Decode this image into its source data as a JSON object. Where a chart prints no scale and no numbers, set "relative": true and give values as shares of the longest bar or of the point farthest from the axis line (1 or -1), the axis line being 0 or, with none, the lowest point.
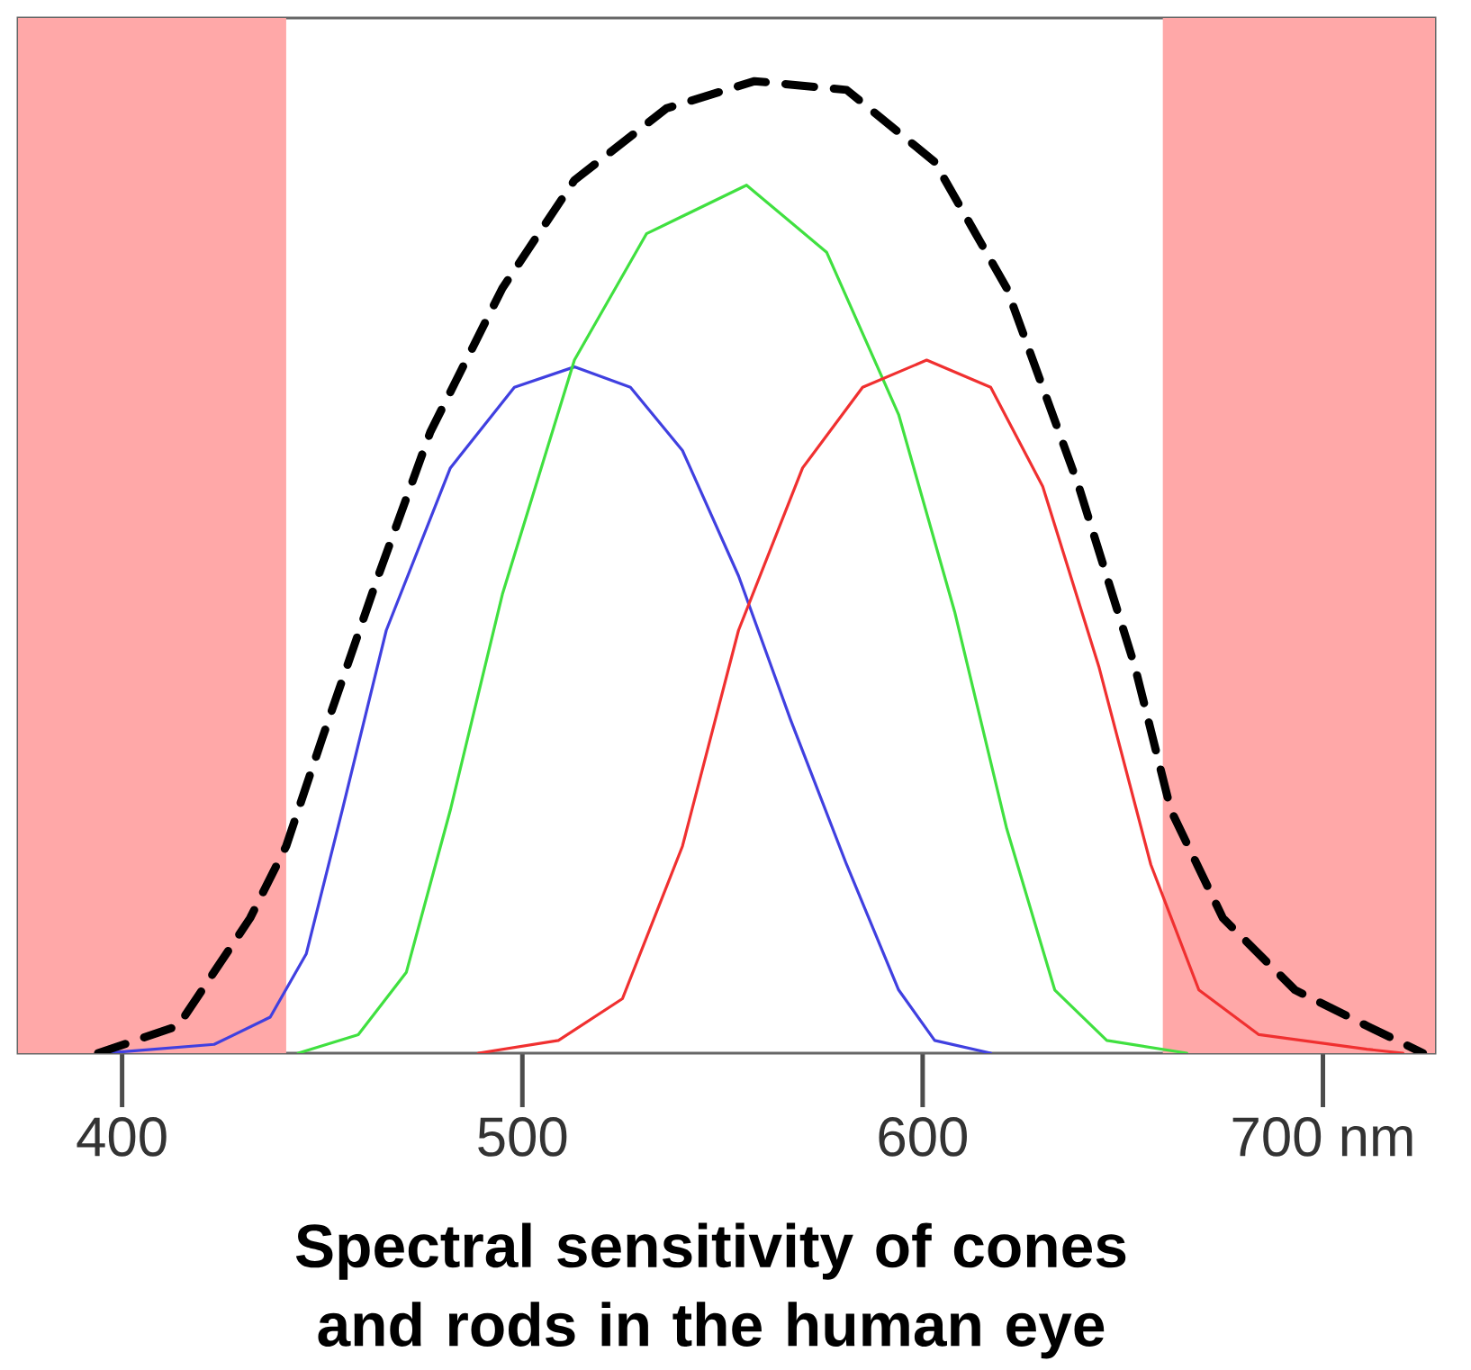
{
  "chart_data": {
    "type": "line",
    "title": "Spectral sensitivity of cones and rods in the human eye",
    "relative": true,
    "xlim": [
      374,
      728
    ],
    "xticks": [
      400,
      500,
      600,
      {
        "value": 700,
        "label": "700 nm"
      }
    ],
    "bands": [
      {
        "axis": "x",
        "from": 374,
        "to": 441,
        "color": "#ffa8a8"
      },
      {
        "axis": "x",
        "from": 660,
        "to": 728,
        "color": "#ffa8a8"
      }
    ],
    "series": [
      {
        "color": "#4040e0",
        "x": [
          396,
          423,
          437,
          446,
          455,
          466,
          482,
          498,
          513,
          527,
          540,
          554,
          567,
          581,
          594,
          603,
          617
        ],
        "values": [
          0,
          0.009,
          0.037,
          0.102,
          0.25,
          0.435,
          0.602,
          0.685,
          0.706,
          0.685,
          0.62,
          0.491,
          0.343,
          0.194,
          0.065,
          0.013,
          0
        ]
      },
      {
        "color": "#40e040",
        "x": [
          444,
          459,
          471,
          482,
          495,
          513,
          531,
          556,
          576,
          594,
          608,
          621,
          633,
          646,
          666
        ],
        "values": [
          0,
          0.019,
          0.083,
          0.25,
          0.472,
          0.713,
          0.843,
          0.893,
          0.824,
          0.657,
          0.454,
          0.231,
          0.065,
          0.013,
          0
        ]
      },
      {
        "color": "#f03030",
        "x": [
          489,
          509,
          525,
          540,
          554,
          570,
          585,
          601,
          617,
          630,
          644,
          657,
          669,
          684,
          711,
          720
        ],
        "values": [
          0,
          0.013,
          0.056,
          0.213,
          0.435,
          0.602,
          0.685,
          0.713,
          0.685,
          0.583,
          0.398,
          0.194,
          0.065,
          0.019,
          0.004,
          0
        ]
      },
      {
        "color": "#000000",
        "line_style": "dashed",
        "x": [
          394,
          414,
          432,
          441,
          450,
          464,
          477,
          495,
          513,
          536,
          558,
          581,
          603,
          621,
          639,
          653,
          662,
          675,
          693,
          711,
          725
        ],
        "values": [
          0,
          0.028,
          0.139,
          0.213,
          0.324,
          0.491,
          0.639,
          0.787,
          0.898,
          0.972,
          1,
          0.991,
          0.917,
          0.787,
          0.583,
          0.398,
          0.25,
          0.139,
          0.065,
          0.028,
          0
        ]
      }
    ]
  }
}
